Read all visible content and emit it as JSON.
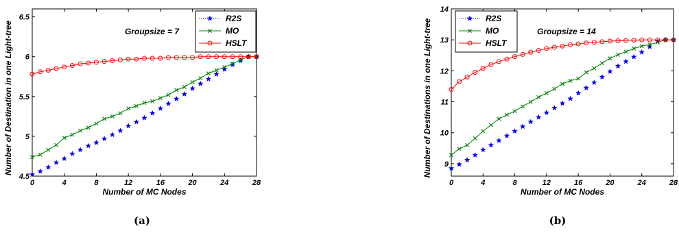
{
  "chart_data": [
    {
      "type": "line",
      "caption": "(a)",
      "annotation": "Groupsize = 7",
      "xlabel": "Number of MC Nodes",
      "ylabel": "Number of Destination in one Light-tree",
      "xlim": [
        0,
        28
      ],
      "ylim": [
        4.5,
        6.6
      ],
      "xticks": [
        "0",
        "4",
        "8",
        "12",
        "16",
        "20",
        "24",
        "28"
      ],
      "yticks": [
        "4.5",
        "5",
        "5.5",
        "6",
        "6.5"
      ],
      "grid": false,
      "legend_position": "top-right",
      "x": [
        0,
        1,
        2,
        3,
        4,
        5,
        6,
        7,
        8,
        9,
        10,
        11,
        12,
        13,
        14,
        15,
        16,
        17,
        18,
        19,
        20,
        21,
        22,
        23,
        24,
        25,
        26,
        27,
        28
      ],
      "series": [
        {
          "name": "R2S",
          "color": "#0000ff",
          "marker": "star",
          "values": [
            4.52,
            4.56,
            4.61,
            4.67,
            4.72,
            4.78,
            4.83,
            4.88,
            4.92,
            4.97,
            5.02,
            5.07,
            5.13,
            5.18,
            5.23,
            5.29,
            5.35,
            5.41,
            5.47,
            5.53,
            5.6,
            5.66,
            5.72,
            5.78,
            5.84,
            5.9,
            5.95,
            6.0,
            6.0
          ]
        },
        {
          "name": "MO",
          "color": "#008000",
          "marker": "x",
          "values": [
            4.74,
            4.77,
            4.83,
            4.89,
            4.98,
            5.02,
            5.07,
            5.11,
            5.16,
            5.22,
            5.25,
            5.29,
            5.35,
            5.38,
            5.42,
            5.44,
            5.48,
            5.52,
            5.58,
            5.62,
            5.68,
            5.73,
            5.79,
            5.83,
            5.87,
            5.91,
            5.96,
            6.0,
            6.0
          ]
        },
        {
          "name": "HSLT",
          "color": "#ff0000",
          "marker": "circle",
          "values": [
            5.78,
            5.81,
            5.83,
            5.85,
            5.87,
            5.89,
            5.91,
            5.92,
            5.93,
            5.94,
            5.95,
            5.96,
            5.97,
            5.97,
            5.98,
            5.98,
            5.98,
            5.99,
            5.99,
            5.99,
            5.99,
            6.0,
            6.0,
            6.0,
            6.0,
            6.0,
            6.0,
            6.0,
            6.0
          ]
        }
      ]
    },
    {
      "type": "line",
      "caption": "(b)",
      "annotation": "Groupsize = 14",
      "xlabel": "Number of MC Nodes",
      "ylabel": "Number of Destinations in one Light-tree",
      "xlim": [
        0,
        28
      ],
      "ylim": [
        8.6,
        14
      ],
      "xticks": [
        "0",
        "4",
        "8",
        "12",
        "16",
        "20",
        "24",
        "28"
      ],
      "yticks": [
        "9",
        "10",
        "11",
        "12",
        "13",
        "14"
      ],
      "grid": false,
      "legend_position": "top-right",
      "x": [
        0,
        1,
        2,
        3,
        4,
        5,
        6,
        7,
        8,
        9,
        10,
        11,
        12,
        13,
        14,
        15,
        16,
        17,
        18,
        19,
        20,
        21,
        22,
        23,
        24,
        25,
        26,
        27,
        28
      ],
      "series": [
        {
          "name": "R2S",
          "color": "#0000ff",
          "marker": "star",
          "values": [
            8.85,
            8.98,
            9.12,
            9.28,
            9.45,
            9.6,
            9.75,
            9.9,
            10.05,
            10.2,
            10.35,
            10.5,
            10.65,
            10.8,
            10.95,
            11.1,
            11.28,
            11.45,
            11.62,
            11.8,
            11.98,
            12.15,
            12.3,
            12.45,
            12.6,
            12.78,
            12.95,
            13.0,
            13.0
          ]
        },
        {
          "name": "MO",
          "color": "#008000",
          "marker": "x",
          "values": [
            9.28,
            9.48,
            9.6,
            9.82,
            10.05,
            10.25,
            10.45,
            10.58,
            10.7,
            10.85,
            11.0,
            11.15,
            11.28,
            11.42,
            11.58,
            11.68,
            11.75,
            11.95,
            12.08,
            12.25,
            12.4,
            12.52,
            12.62,
            12.72,
            12.8,
            12.85,
            12.92,
            13.0,
            13.0
          ]
        },
        {
          "name": "HSLT",
          "color": "#ff0000",
          "marker": "circle",
          "values": [
            11.4,
            11.65,
            11.8,
            11.95,
            12.08,
            12.2,
            12.3,
            12.38,
            12.46,
            12.53,
            12.6,
            12.66,
            12.72,
            12.76,
            12.8,
            12.84,
            12.87,
            12.9,
            12.92,
            12.94,
            12.96,
            12.97,
            12.98,
            12.99,
            13.0,
            13.0,
            13.0,
            13.0,
            13.0
          ]
        }
      ]
    }
  ]
}
